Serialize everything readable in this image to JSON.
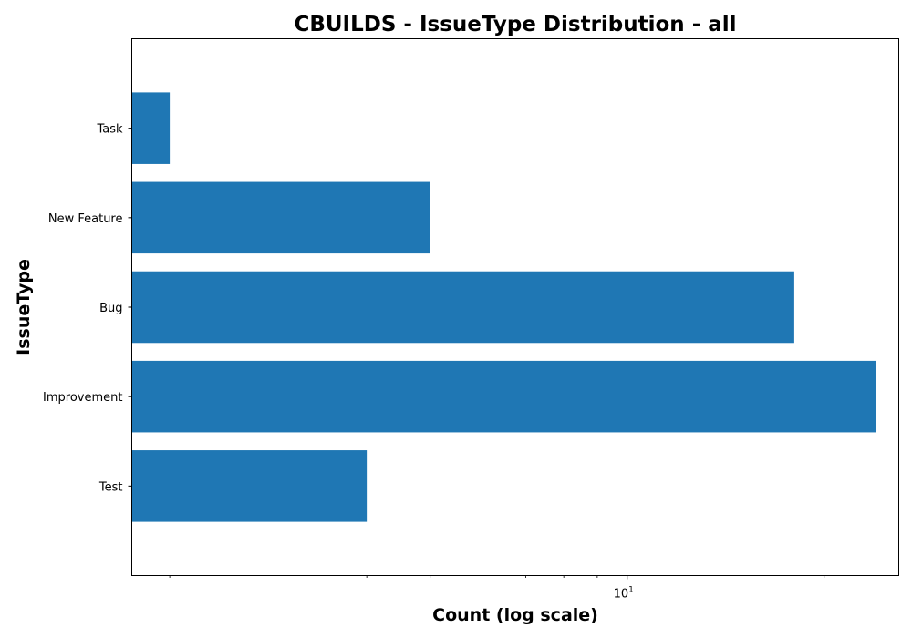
{
  "chart_data": {
    "type": "bar",
    "orientation": "horizontal",
    "title": "CBUILDS - IssueType Distribution - all",
    "xlabel": "Count (log scale)",
    "ylabel": "IssueType",
    "xscale": "log",
    "xlim": [
      1.75,
      26
    ],
    "categories": [
      "Test",
      "Improvement",
      "Bug",
      "New Feature",
      "Task"
    ],
    "values": [
      4,
      24,
      18,
      5,
      2
    ],
    "color": "#1f77b4",
    "x_ticks": [
      {
        "base": "10",
        "exp": "1",
        "value": 10
      }
    ],
    "grid": false,
    "legend": "none"
  }
}
